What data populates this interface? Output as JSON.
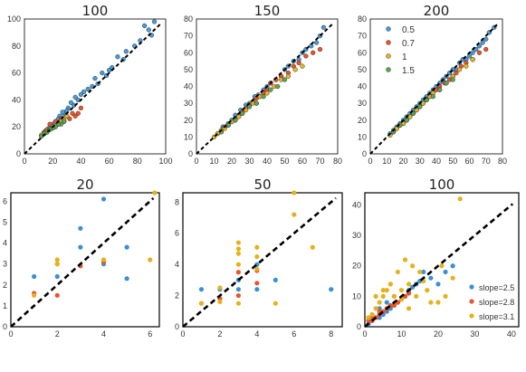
{
  "figure": {
    "ref_line_color": "#000000",
    "top_panel_colors": [
      "#4a9bd6",
      "#e8542b",
      "#e3b423",
      "#5ea45a"
    ],
    "bottom_panel_colors": [
      "#3b8fd4",
      "#e8542b",
      "#e3b21d"
    ]
  },
  "chart_data": [
    {
      "type": "scatter",
      "title": "100",
      "xlim": [
        0,
        100
      ],
      "ylim": [
        0,
        100
      ],
      "xticks": [
        "0",
        "20",
        "40",
        "60",
        "80",
        "100"
      ],
      "yticks": [
        "0",
        "20",
        "40",
        "60",
        "80",
        "100"
      ],
      "reference_line": "y=x",
      "series": [
        {
          "x": [
            85,
            88,
            92,
            90,
            82,
            78,
            72,
            70,
            66,
            62,
            60,
            58,
            55,
            52,
            50,
            48,
            45,
            42,
            40,
            38,
            36,
            35,
            33,
            31,
            30,
            28,
            27,
            25,
            24,
            22,
            20,
            18,
            16,
            15,
            14
          ],
          "y": [
            95,
            92,
            98,
            88,
            84,
            80,
            76,
            70,
            72,
            64,
            62,
            58,
            60,
            52,
            56,
            50,
            48,
            46,
            44,
            40,
            42,
            36,
            38,
            34,
            32,
            30,
            31,
            28,
            26,
            24,
            22,
            20,
            18,
            17,
            16
          ]
        },
        {
          "x": [
            40,
            38,
            36,
            34,
            32,
            30,
            28,
            26,
            24,
            22,
            20,
            18,
            16,
            14
          ],
          "y": [
            34,
            30,
            28,
            30,
            26,
            28,
            24,
            26,
            22,
            24,
            20,
            22,
            18,
            16
          ]
        },
        {
          "x": [
            30,
            28,
            26,
            24,
            22,
            20,
            18,
            16,
            14,
            12
          ],
          "y": [
            28,
            25,
            24,
            22,
            21,
            20,
            18,
            17,
            15,
            14
          ]
        },
        {
          "x": [
            28,
            26,
            24,
            22,
            20,
            18,
            16,
            14,
            12
          ],
          "y": [
            24,
            22,
            22,
            20,
            19,
            18,
            16,
            15,
            13
          ]
        }
      ]
    },
    {
      "type": "scatter",
      "title": "150",
      "xlim": [
        0,
        80
      ],
      "ylim": [
        0,
        80
      ],
      "xticks": [
        "0",
        "10",
        "20",
        "30",
        "40",
        "50",
        "60",
        "70",
        "80"
      ],
      "yticks": [
        "0",
        "10",
        "20",
        "30",
        "40",
        "50",
        "60",
        "70",
        "80"
      ],
      "reference_line": "y=x",
      "series": [
        {
          "x": [
            72,
            70,
            68,
            65,
            62,
            60,
            58,
            55,
            52,
            50,
            48,
            45,
            42,
            40,
            38,
            35,
            33,
            30,
            28,
            25,
            22,
            20,
            18,
            15,
            12
          ],
          "y": [
            75,
            70,
            66,
            64,
            62,
            60,
            56,
            55,
            52,
            50,
            46,
            44,
            42,
            40,
            38,
            35,
            34,
            30,
            29,
            26,
            23,
            20,
            18,
            16,
            12
          ]
        },
        {
          "x": [
            70,
            66,
            62,
            58,
            55,
            52,
            48,
            45,
            42,
            40,
            38,
            36,
            34,
            32,
            30,
            28,
            26,
            24,
            22,
            20,
            18,
            16,
            14
          ],
          "y": [
            62,
            60,
            58,
            54,
            52,
            48,
            46,
            44,
            42,
            38,
            36,
            34,
            33,
            31,
            29,
            27,
            25,
            23,
            21,
            19,
            17,
            16,
            13
          ]
        },
        {
          "x": [
            60,
            56,
            52,
            48,
            44,
            40,
            36,
            34,
            32,
            30,
            28,
            26,
            24,
            22,
            20,
            18,
            16,
            14,
            12,
            10
          ],
          "y": [
            52,
            50,
            46,
            44,
            40,
            36,
            34,
            30,
            30,
            28,
            26,
            24,
            22,
            20,
            19,
            17,
            15,
            14,
            12,
            10
          ]
        },
        {
          "x": [
            50,
            46,
            42,
            38,
            34,
            30,
            26,
            22,
            18,
            14
          ],
          "y": [
            44,
            40,
            38,
            34,
            30,
            28,
            24,
            20,
            17,
            13
          ]
        }
      ]
    },
    {
      "type": "scatter",
      "title": "200",
      "xlim": [
        0,
        80
      ],
      "ylim": [
        0,
        80
      ],
      "xticks": [
        "0",
        "10",
        "20",
        "30",
        "40",
        "50",
        "60",
        "70",
        "80"
      ],
      "yticks": [
        "0",
        "10",
        "20",
        "30",
        "40",
        "50",
        "60",
        "70",
        "80"
      ],
      "reference_line": "y=x",
      "legend": {
        "placement": "upper-left"
      },
      "series": [
        {
          "name": "0.5",
          "x": [
            75,
            72,
            70,
            68,
            66,
            64,
            62,
            60,
            58,
            56,
            54,
            52,
            50,
            48,
            46,
            44,
            42,
            40,
            38,
            36,
            34,
            32,
            30,
            28,
            26,
            24,
            22,
            20,
            18,
            16,
            14,
            12
          ],
          "y": [
            75,
            72,
            68,
            66,
            64,
            62,
            60,
            58,
            56,
            56,
            54,
            50,
            50,
            48,
            46,
            44,
            42,
            40,
            38,
            36,
            34,
            32,
            30,
            28,
            26,
            24,
            22,
            20,
            18,
            16,
            14,
            12
          ]
        },
        {
          "name": "0.7",
          "x": [
            70,
            66,
            62,
            58,
            55,
            52,
            50,
            48,
            45,
            42,
            40,
            38,
            36,
            34,
            32,
            30,
            28,
            26,
            24,
            22,
            20,
            18,
            16,
            14
          ],
          "y": [
            62,
            60,
            56,
            54,
            52,
            48,
            46,
            44,
            42,
            40,
            38,
            36,
            34,
            32,
            30,
            28,
            26,
            24,
            22,
            20,
            18,
            17,
            15,
            13
          ]
        },
        {
          "name": "1",
          "x": [
            62,
            58,
            54,
            50,
            46,
            42,
            38,
            36,
            34,
            32,
            30,
            28,
            26,
            24,
            22,
            20,
            18,
            16,
            14,
            12
          ],
          "y": [
            56,
            52,
            50,
            46,
            42,
            38,
            36,
            34,
            32,
            30,
            28,
            26,
            24,
            22,
            20,
            18,
            17,
            15,
            13,
            11
          ]
        },
        {
          "name": "1.5",
          "x": [
            50,
            46,
            42,
            38,
            34,
            30,
            26,
            22,
            18,
            14
          ],
          "y": [
            44,
            42,
            38,
            34,
            32,
            28,
            24,
            20,
            17,
            13
          ]
        }
      ]
    },
    {
      "type": "scatter",
      "title": "20",
      "xlim": [
        0,
        6.4
      ],
      "ylim": [
        0,
        6.4
      ],
      "xticks": [
        "0",
        "2",
        "4",
        "6"
      ],
      "yticks": [
        "0",
        "1",
        "2",
        "3",
        "4",
        "5",
        "6"
      ],
      "reference_line": "y=x",
      "series": [
        {
          "x": [
            1,
            2,
            3,
            3,
            4,
            4,
            5,
            5
          ],
          "y": [
            2.4,
            2.4,
            4.7,
            3.8,
            6.1,
            3.0,
            2.3,
            3.8
          ]
        },
        {
          "x": [
            1,
            2,
            2,
            3,
            4
          ],
          "y": [
            1.6,
            1.5,
            3.0,
            2.9,
            3.1
          ]
        },
        {
          "x": [
            1,
            2,
            2,
            4,
            6,
            6.2
          ],
          "y": [
            1.5,
            3.0,
            3.2,
            3.2,
            3.2,
            6.4
          ]
        }
      ]
    },
    {
      "type": "scatter",
      "title": "50",
      "xlim": [
        0,
        8.6
      ],
      "ylim": [
        0,
        8.6
      ],
      "xticks": [
        "0",
        "2",
        "4",
        "6",
        "8"
      ],
      "yticks": [
        "0",
        "2",
        "4",
        "6",
        "8"
      ],
      "reference_line": "y=x",
      "series": [
        {
          "x": [
            1,
            2,
            2,
            3,
            3,
            4,
            4,
            5,
            8
          ],
          "y": [
            2.4,
            2.4,
            1.8,
            3.0,
            2.4,
            2.4,
            4.0,
            3.0,
            2.4
          ]
        },
        {
          "x": [
            1,
            2,
            3,
            3,
            4,
            4
          ],
          "y": [
            1.5,
            1.8,
            2.0,
            3.5,
            3.6,
            2.8
          ]
        },
        {
          "x": [
            1,
            2,
            2,
            3,
            3,
            3,
            3,
            3,
            4,
            4,
            4,
            5,
            6,
            6,
            7
          ],
          "y": [
            1.5,
            2.5,
            1.6,
            5.4,
            4.0,
            4.7,
            5.0,
            1.5,
            4.5,
            5.1,
            3.7,
            1.5,
            8.6,
            7.2,
            5.1
          ]
        }
      ]
    },
    {
      "type": "scatter",
      "title": "100",
      "xlim": [
        0,
        42
      ],
      "ylim": [
        0,
        44
      ],
      "xticks": [
        "0",
        "10",
        "20",
        "30",
        "40"
      ],
      "yticks": [
        "0",
        "10",
        "20",
        "30",
        "40"
      ],
      "reference_line": "y=x",
      "legend": {
        "placement": "lower-right"
      },
      "series": [
        {
          "name": "slope=2.5",
          "x": [
            1,
            2,
            3,
            4,
            5,
            6,
            7,
            8,
            9,
            10,
            11,
            12,
            13,
            14,
            15,
            16,
            18,
            20,
            22,
            24,
            2,
            4,
            6,
            8
          ],
          "y": [
            1,
            2,
            3,
            3,
            4,
            5,
            6,
            7,
            8,
            9,
            10,
            12,
            13,
            14,
            15,
            18,
            16,
            14,
            18,
            20,
            4,
            6,
            8,
            10
          ]
        },
        {
          "name": "slope=2.8",
          "x": [
            1,
            2,
            3,
            4,
            5,
            6,
            7,
            8,
            9,
            10,
            11,
            12,
            2,
            4,
            6
          ],
          "y": [
            2,
            2,
            3,
            4,
            5,
            6,
            7,
            7,
            8,
            9,
            10,
            11,
            3,
            5,
            6
          ]
        },
        {
          "name": "slope=3.1",
          "x": [
            1,
            2,
            3,
            4,
            5,
            6,
            7,
            8,
            9,
            10,
            11,
            12,
            13,
            14,
            15,
            16,
            17,
            18,
            20,
            21,
            22,
            24,
            26,
            3,
            5,
            7,
            10,
            12
          ],
          "y": [
            3,
            4,
            6,
            8,
            10,
            12,
            14,
            10,
            18,
            12,
            22,
            14,
            20,
            10,
            18,
            15,
            12,
            8,
            8,
            20,
            10,
            16,
            42,
            10,
            12,
            14,
            9,
            6
          ]
        }
      ]
    }
  ]
}
